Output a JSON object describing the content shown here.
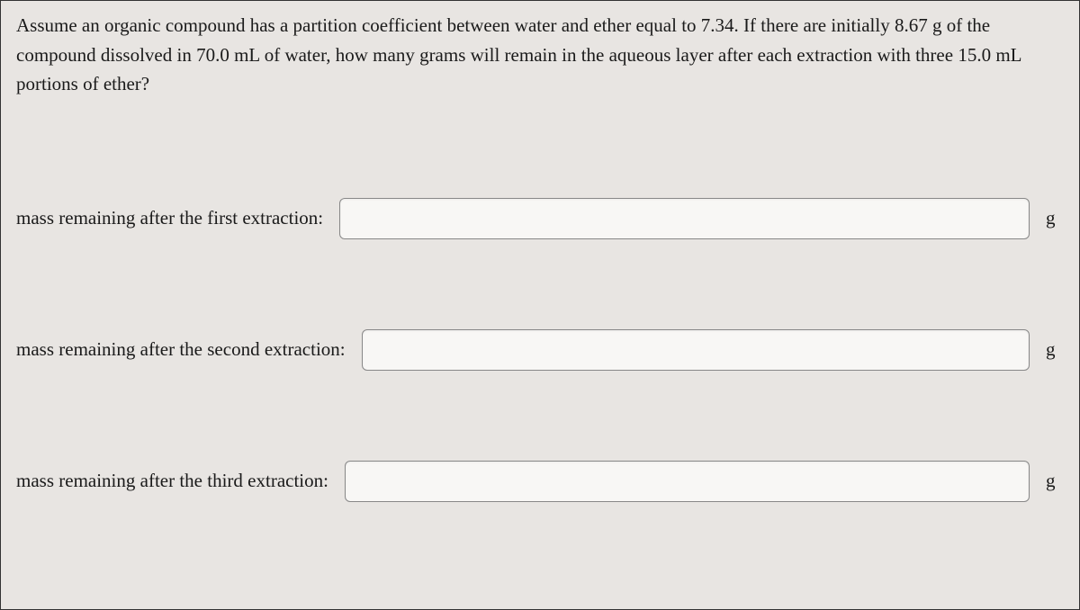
{
  "question": {
    "text": "Assume an organic compound has a partition coefficient between water and ether equal to 7.34. If there are initially 8.67 g of the compound dissolved in 70.0 mL of water, how many grams will remain in the aqueous layer after each extraction with three 15.0 mL portions of ether?"
  },
  "inputs": [
    {
      "label": "mass remaining after the first extraction:",
      "value": "",
      "unit": "g"
    },
    {
      "label": "mass remaining after the second extraction:",
      "value": "",
      "unit": "g"
    },
    {
      "label": "mass remaining after the third extraction:",
      "value": "",
      "unit": "g"
    }
  ],
  "colors": {
    "background": "#e8e5e2",
    "text": "#1a1a1a",
    "input_border": "#888",
    "input_bg": "#f8f7f5"
  }
}
